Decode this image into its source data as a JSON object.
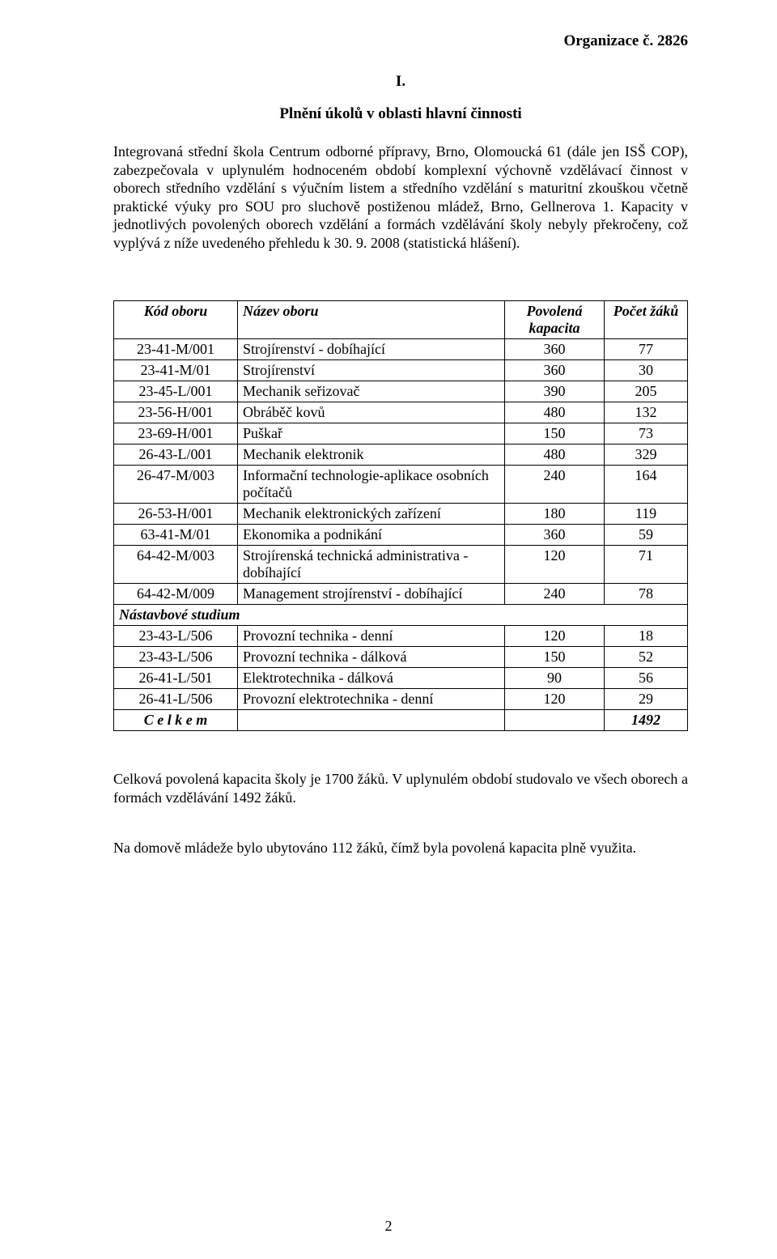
{
  "header_right": "Organizace č. 2826",
  "section_number": "I.",
  "section_title": "Plnění úkolů v oblasti hlavní činnosti",
  "paragraph": "Integrovaná střední škola Centrum odborné přípravy, Brno, Olomoucká 61 (dále jen ISŠ COP), zabezpečovala v uplynulém hodnoceném období komplexní výchovně vzdělávací činnost v oborech středního vzdělání s výučním listem a středního vzdělání s maturitní zkouškou včetně praktické výuky pro SOU pro sluchově postiženou mládež, Brno, Gellnerova 1. Kapacity v jednotlivých povolených oborech vzdělání a formách vzdělávání školy nebyly překročeny, což vyplývá z níže uvedeného přehledu k 30. 9. 2008 (statistická hlášení).",
  "table": {
    "headers": {
      "code": "Kód oboru",
      "name": "Název oboru",
      "capacity": "Povolená kapacita",
      "count": "Počet žáků"
    },
    "rows": [
      {
        "code": "23-41-M/001",
        "name": "Strojírenství - dobíhající",
        "capacity": "360",
        "count": "77"
      },
      {
        "code": "23-41-M/01",
        "name": "Strojírenství",
        "capacity": "360",
        "count": "30"
      },
      {
        "code": "23-45-L/001",
        "name": "Mechanik seřizovač",
        "capacity": "390",
        "count": "205"
      },
      {
        "code": "23-56-H/001",
        "name": "Obráběč kovů",
        "capacity": "480",
        "count": "132"
      },
      {
        "code": "23-69-H/001",
        "name": "Puškař",
        "capacity": "150",
        "count": "73"
      },
      {
        "code": "26-43-L/001",
        "name": "Mechanik elektronik",
        "capacity": "480",
        "count": "329"
      },
      {
        "code": "26-47-M/003",
        "name": "Informační technologie-aplikace osobních počítačů",
        "capacity": "240",
        "count": "164"
      },
      {
        "code": "26-53-H/001",
        "name": "Mechanik elektronických zařízení",
        "capacity": "180",
        "count": "119"
      },
      {
        "code": "63-41-M/01",
        "name": "Ekonomika a podnikání",
        "capacity": "360",
        "count": "59"
      },
      {
        "code": "64-42-M/003",
        "name": "Strojírenská technická administrativa - dobíhající",
        "capacity": "120",
        "count": "71"
      },
      {
        "code": "64-42-M/009",
        "name": "Management strojírenství - dobíhající",
        "capacity": "240",
        "count": "78"
      }
    ],
    "section_label": "Nástavbové studium",
    "rows2": [
      {
        "code": "23-43-L/506",
        "name": "Provozní technika - denní",
        "capacity": "120",
        "count": "18"
      },
      {
        "code": "23-43-L/506",
        "name": "Provozní technika - dálková",
        "capacity": "150",
        "count": "52"
      },
      {
        "code": "26-41-L/501",
        "name": "Elektrotechnika - dálková",
        "capacity": "90",
        "count": "56"
      },
      {
        "code": "26-41-L/506",
        "name": "Provozní elektrotechnika - denní",
        "capacity": "120",
        "count": "29"
      }
    ],
    "total_label": "C e l k e m",
    "total_value": "1492"
  },
  "note1": "Celková povolená kapacita školy je 1700 žáků. V uplynulém období studovalo ve všech oborech a formách vzdělávání 1492 žáků.",
  "note2": "Na domově mládeže bylo ubytováno 112 žáků, čímž byla povolená kapacita plně využita.",
  "page_number": "2"
}
